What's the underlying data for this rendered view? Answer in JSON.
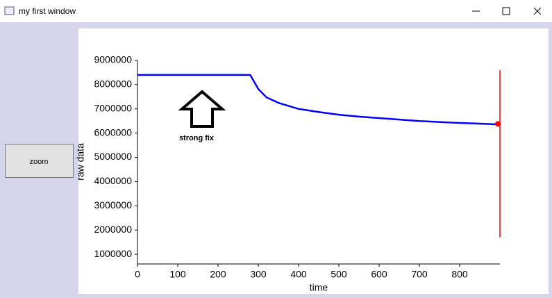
{
  "window": {
    "title": "my first window"
  },
  "button": {
    "label": "zoom"
  },
  "chart_data": {
    "type": "line",
    "xlabel": "time",
    "ylabel": "raw data",
    "xlim": [
      0,
      900
    ],
    "ylim": [
      600000,
      9000000
    ],
    "xticks": [
      0,
      100,
      200,
      300,
      400,
      500,
      600,
      700,
      800
    ],
    "yticks": [
      1000000,
      2000000,
      3000000,
      4000000,
      5000000,
      6000000,
      7000000,
      8000000,
      9000000
    ],
    "series": [
      {
        "color": "#0000ff",
        "x": [
          0,
          100,
          200,
          280,
          290,
          300,
          320,
          350,
          400,
          450,
          500,
          550,
          600,
          650,
          700,
          750,
          800,
          850,
          895
        ],
        "values": [
          8400000,
          8400000,
          8400000,
          8400000,
          8110000,
          7820000,
          7480000,
          7250000,
          7000000,
          6870000,
          6760000,
          6680000,
          6620000,
          6560000,
          6500000,
          6460000,
          6420000,
          6390000,
          6360000
        ]
      },
      {
        "color": "#ff0000",
        "x": [
          900,
          900
        ],
        "values": [
          8600000,
          1700000
        ]
      },
      {
        "color": "#ff0000",
        "x": [
          895
        ],
        "values": [
          6380000
        ],
        "marker": true
      }
    ],
    "annotations": [
      {
        "text": "strong fix"
      }
    ]
  }
}
